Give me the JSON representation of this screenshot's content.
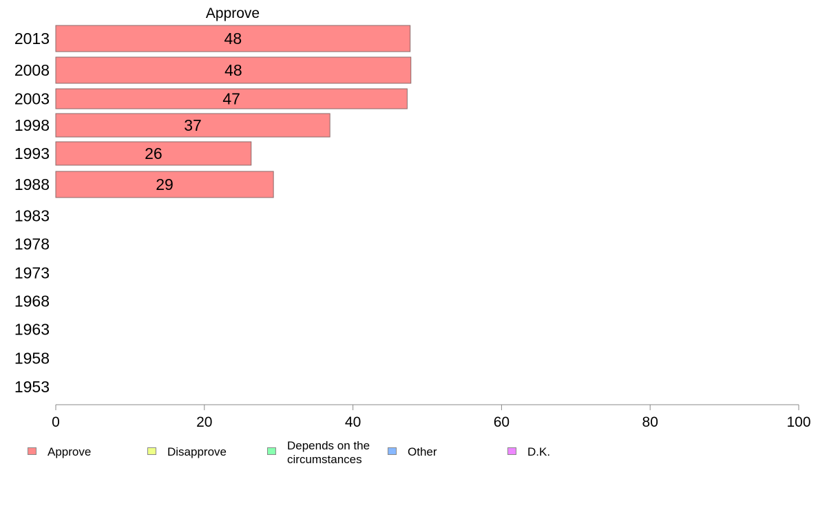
{
  "chart_data": {
    "type": "bar",
    "orientation": "horizontal",
    "panel_title": "Approve",
    "categories": [
      "2013",
      "2008",
      "2003",
      "1998",
      "1993",
      "1988",
      "1983",
      "1978",
      "1973",
      "1968",
      "1963",
      "1958",
      "1953"
    ],
    "series": [
      {
        "name": "Approve",
        "values": [
          47.7,
          47.8,
          47.3,
          36.9,
          26.3,
          29.3,
          null,
          null,
          null,
          null,
          null,
          null,
          null
        ],
        "labels": [
          "48",
          "48",
          "47",
          "37",
          "26",
          "29",
          "",
          "",
          "",
          "",
          "",
          "",
          ""
        ],
        "color": "#ff8a8a"
      }
    ],
    "xlim": [
      0,
      100
    ],
    "xticks": [
      "0",
      "20",
      "40",
      "60",
      "80",
      "100"
    ],
    "legend_position": "bottom",
    "legend": [
      {
        "label": "Approve",
        "color": "#ff8a8a"
      },
      {
        "label": "Disapprove",
        "color": "#eeff88"
      },
      {
        "label": "Depends on the circumstances",
        "color": "#88ffb0"
      },
      {
        "label": "Other",
        "color": "#88b8ff"
      },
      {
        "label": "D.K.",
        "color": "#ee88ff"
      }
    ]
  }
}
